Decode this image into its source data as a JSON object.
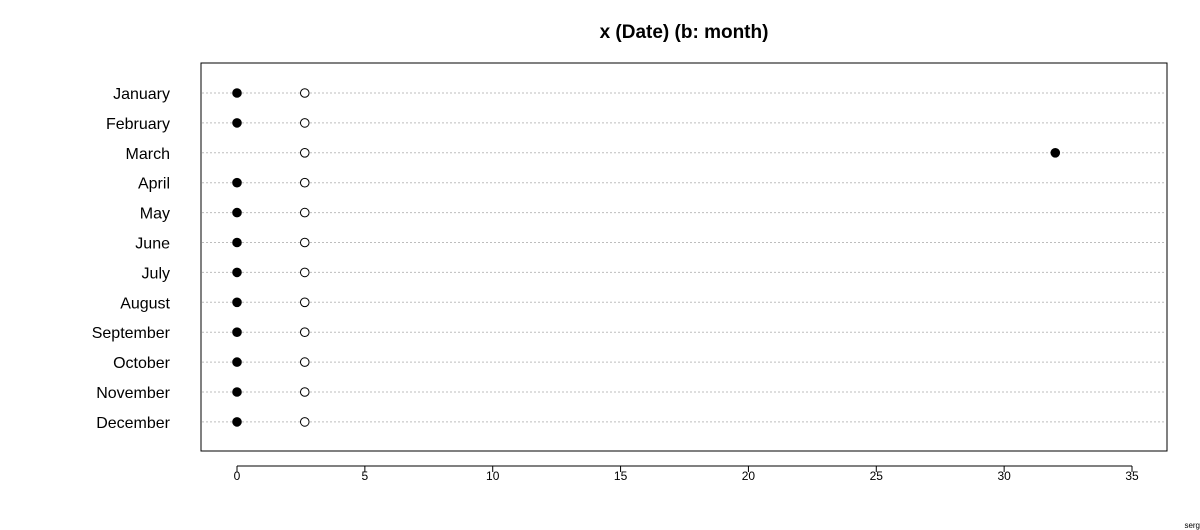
{
  "corner_note": "serg",
  "chart_data": {
    "type": "scatter",
    "title": "x (Date) (b: month)",
    "xlabel": "",
    "ylabel": "",
    "xlim": [
      -1.4,
      36.4
    ],
    "xticks": [
      0,
      5,
      10,
      15,
      20,
      25,
      30,
      35
    ],
    "grid": "horizontal dotted",
    "categories": [
      "January",
      "February",
      "March",
      "April",
      "May",
      "June",
      "July",
      "August",
      "September",
      "October",
      "November",
      "December"
    ],
    "series": [
      {
        "marker": "filled",
        "values": [
          0,
          0,
          32,
          0,
          0,
          0,
          0,
          0,
          0,
          0,
          0,
          0
        ]
      },
      {
        "marker": "open",
        "values": [
          2.65,
          2.65,
          2.65,
          2.65,
          2.65,
          2.65,
          2.65,
          2.65,
          2.65,
          2.65,
          2.65,
          2.65
        ]
      }
    ]
  }
}
